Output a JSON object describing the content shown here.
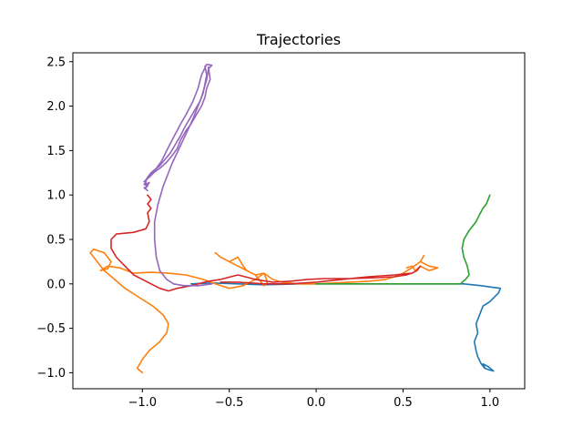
{
  "chart_data": {
    "type": "line",
    "title": "Trajectories",
    "xlabel": "",
    "ylabel": "",
    "xlim": [
      -1.4,
      1.2
    ],
    "ylim": [
      -1.18,
      2.6
    ],
    "xticks": [
      -1.0,
      -0.5,
      0.0,
      0.5,
      1.0
    ],
    "xtick_labels": [
      "−1.0",
      "−0.5",
      "0.0",
      "0.5",
      "1.0"
    ],
    "yticks": [
      -1.0,
      -0.5,
      0.0,
      0.5,
      1.0,
      1.5,
      2.0,
      2.5
    ],
    "ytick_labels": [
      "−1.0",
      "−0.5",
      "0.0",
      "0.5",
      "1.0",
      "1.5",
      "2.0",
      "2.5"
    ],
    "grid": false,
    "legend": "none",
    "series": [
      {
        "color": "#1f77b4",
        "points": [
          [
            -0.72,
            0.0
          ],
          [
            -0.6,
            0.01
          ],
          [
            -0.45,
            0.0
          ],
          [
            -0.3,
            -0.01
          ],
          [
            -0.1,
            0.0
          ],
          [
            0.1,
            0.0
          ],
          [
            0.3,
            0.0
          ],
          [
            0.5,
            0.0
          ],
          [
            0.7,
            0.0
          ],
          [
            0.85,
            0.0
          ],
          [
            0.95,
            -0.02
          ],
          [
            1.02,
            -0.04
          ],
          [
            1.06,
            -0.05
          ],
          [
            1.05,
            -0.1
          ],
          [
            1.0,
            -0.2
          ],
          [
            0.96,
            -0.25
          ],
          [
            0.94,
            -0.35
          ],
          [
            0.92,
            -0.45
          ],
          [
            0.93,
            -0.55
          ],
          [
            0.91,
            -0.65
          ],
          [
            0.92,
            -0.75
          ],
          [
            0.93,
            -0.82
          ],
          [
            0.95,
            -0.9
          ],
          [
            0.97,
            -0.95
          ],
          [
            1.0,
            -0.97
          ],
          [
            1.02,
            -0.98
          ],
          [
            0.99,
            -0.93
          ],
          [
            0.96,
            -0.9
          ],
          [
            0.97,
            -0.94
          ]
        ]
      },
      {
        "color": "#ff7f0e",
        "points": [
          [
            -1.0,
            -1.0
          ],
          [
            -1.03,
            -0.95
          ],
          [
            -1.0,
            -0.85
          ],
          [
            -0.96,
            -0.75
          ],
          [
            -0.9,
            -0.65
          ],
          [
            -0.86,
            -0.55
          ],
          [
            -0.85,
            -0.45
          ],
          [
            -0.88,
            -0.35
          ],
          [
            -0.94,
            -0.25
          ],
          [
            -1.02,
            -0.15
          ],
          [
            -1.1,
            -0.05
          ],
          [
            -1.16,
            0.05
          ],
          [
            -1.22,
            0.15
          ],
          [
            -1.26,
            0.25
          ],
          [
            -1.3,
            0.35
          ],
          [
            -1.28,
            0.39
          ],
          [
            -1.22,
            0.35
          ],
          [
            -1.18,
            0.25
          ],
          [
            -1.2,
            0.17
          ],
          [
            -1.24,
            0.15
          ],
          [
            -1.2,
            0.2
          ],
          [
            -1.13,
            0.18
          ],
          [
            -1.05,
            0.12
          ],
          [
            -0.95,
            0.13
          ],
          [
            -0.85,
            0.12
          ],
          [
            -0.75,
            0.1
          ],
          [
            -0.65,
            0.05
          ],
          [
            -0.58,
            0.0
          ],
          [
            -0.5,
            -0.05
          ],
          [
            -0.42,
            -0.02
          ],
          [
            -0.35,
            0.05
          ],
          [
            -0.3,
            0.12
          ],
          [
            -0.28,
            0.02
          ],
          [
            -0.3,
            -0.02
          ],
          [
            -0.35,
            0.1
          ],
          [
            -0.45,
            0.2
          ],
          [
            -0.5,
            0.25
          ],
          [
            -0.55,
            0.3
          ],
          [
            -0.58,
            0.35
          ],
          [
            -0.55,
            0.3
          ],
          [
            -0.5,
            0.25
          ],
          [
            -0.45,
            0.3
          ],
          [
            -0.42,
            0.2
          ],
          [
            -0.4,
            0.15
          ],
          [
            -0.35,
            0.1
          ],
          [
            -0.3,
            0.12
          ],
          [
            -0.25,
            0.05
          ],
          [
            -0.2,
            0.02
          ],
          [
            -0.1,
            0.0
          ],
          [
            0.0,
            0.0
          ],
          [
            0.1,
            0.01
          ],
          [
            0.2,
            0.02
          ],
          [
            0.3,
            0.03
          ],
          [
            0.4,
            0.05
          ],
          [
            0.45,
            0.08
          ],
          [
            0.5,
            0.12
          ],
          [
            0.55,
            0.18
          ],
          [
            0.6,
            0.25
          ],
          [
            0.62,
            0.32
          ],
          [
            0.6,
            0.25
          ],
          [
            0.65,
            0.2
          ],
          [
            0.7,
            0.18
          ],
          [
            0.65,
            0.15
          ],
          [
            0.6,
            0.2
          ],
          [
            0.57,
            0.15
          ],
          [
            0.55,
            0.2
          ],
          [
            0.52,
            0.18
          ]
        ]
      },
      {
        "color": "#2ca02c",
        "points": [
          [
            0.0,
            0.0
          ],
          [
            0.2,
            0.0
          ],
          [
            0.4,
            0.0
          ],
          [
            0.6,
            0.0
          ],
          [
            0.75,
            0.0
          ],
          [
            0.83,
            0.0
          ],
          [
            0.86,
            0.05
          ],
          [
            0.88,
            0.1
          ],
          [
            0.87,
            0.2
          ],
          [
            0.85,
            0.3
          ],
          [
            0.84,
            0.4
          ],
          [
            0.85,
            0.5
          ],
          [
            0.88,
            0.6
          ],
          [
            0.9,
            0.65
          ],
          [
            0.92,
            0.7
          ],
          [
            0.94,
            0.78
          ],
          [
            0.96,
            0.85
          ],
          [
            0.98,
            0.9
          ],
          [
            0.99,
            0.95
          ],
          [
            1.0,
            1.0
          ]
        ]
      },
      {
        "color": "#d62728",
        "points": [
          [
            -0.97,
            1.0
          ],
          [
            -0.95,
            0.95
          ],
          [
            -0.97,
            0.9
          ],
          [
            -0.95,
            0.85
          ],
          [
            -0.97,
            0.8
          ],
          [
            -0.96,
            0.7
          ],
          [
            -0.98,
            0.62
          ],
          [
            -1.05,
            0.58
          ],
          [
            -1.15,
            0.56
          ],
          [
            -1.18,
            0.5
          ],
          [
            -1.18,
            0.4
          ],
          [
            -1.15,
            0.3
          ],
          [
            -1.1,
            0.2
          ],
          [
            -1.05,
            0.1
          ],
          [
            -1.0,
            0.05
          ],
          [
            -0.95,
            0.0
          ],
          [
            -0.9,
            -0.05
          ],
          [
            -0.85,
            -0.08
          ],
          [
            -0.8,
            -0.05
          ],
          [
            -0.72,
            -0.02
          ],
          [
            -0.62,
            0.03
          ],
          [
            -0.55,
            0.05
          ],
          [
            -0.45,
            0.1
          ],
          [
            -0.35,
            0.05
          ],
          [
            -0.25,
            0.02
          ],
          [
            -0.15,
            0.03
          ],
          [
            -0.05,
            0.05
          ],
          [
            0.05,
            0.06
          ],
          [
            0.2,
            0.06
          ],
          [
            0.35,
            0.07
          ],
          [
            0.45,
            0.08
          ],
          [
            0.52,
            0.1
          ],
          [
            0.55,
            0.12
          ],
          [
            0.58,
            0.15
          ],
          [
            0.6,
            0.2
          ],
          [
            0.58,
            0.15
          ],
          [
            0.55,
            0.12
          ],
          [
            0.45,
            0.1
          ],
          [
            0.3,
            0.08
          ],
          [
            0.15,
            0.05
          ],
          [
            0.0,
            0.02
          ],
          [
            -0.15,
            0.0
          ],
          [
            -0.3,
            0.0
          ],
          [
            -0.45,
            0.02
          ],
          [
            -0.55,
            0.02
          ]
        ]
      },
      {
        "color": "#9467bd",
        "points": [
          [
            -0.6,
            0.0
          ],
          [
            -0.68,
            -0.02
          ],
          [
            -0.76,
            -0.02
          ],
          [
            -0.82,
            0.0
          ],
          [
            -0.86,
            0.05
          ],
          [
            -0.9,
            0.15
          ],
          [
            -0.92,
            0.3
          ],
          [
            -0.93,
            0.5
          ],
          [
            -0.93,
            0.7
          ],
          [
            -0.91,
            0.9
          ],
          [
            -0.88,
            1.1
          ],
          [
            -0.83,
            1.35
          ],
          [
            -0.77,
            1.6
          ],
          [
            -0.71,
            1.85
          ],
          [
            -0.66,
            2.1
          ],
          [
            -0.63,
            2.3
          ],
          [
            -0.62,
            2.42
          ],
          [
            -0.6,
            2.46
          ],
          [
            -0.63,
            2.47
          ],
          [
            -0.66,
            2.35
          ],
          [
            -0.68,
            2.2
          ],
          [
            -0.71,
            2.05
          ],
          [
            -0.75,
            1.9
          ],
          [
            -0.78,
            1.8
          ],
          [
            -0.82,
            1.65
          ],
          [
            -0.86,
            1.5
          ],
          [
            -0.89,
            1.38
          ],
          [
            -0.92,
            1.3
          ],
          [
            -0.95,
            1.25
          ],
          [
            -0.97,
            1.2
          ],
          [
            -0.98,
            1.15
          ],
          [
            -0.99,
            1.12
          ],
          [
            -0.97,
            1.1
          ],
          [
            -0.99,
            1.08
          ],
          [
            -0.97,
            1.05
          ]
        ]
      },
      {
        "color": "#9467bd",
        "points": [
          [
            -0.64,
            2.45
          ],
          [
            -0.63,
            2.35
          ],
          [
            -0.64,
            2.25
          ],
          [
            -0.65,
            2.15
          ],
          [
            -0.67,
            2.05
          ],
          [
            -0.7,
            1.95
          ],
          [
            -0.73,
            1.85
          ],
          [
            -0.76,
            1.75
          ],
          [
            -0.78,
            1.67
          ],
          [
            -0.81,
            1.57
          ],
          [
            -0.84,
            1.47
          ],
          [
            -0.87,
            1.4
          ],
          [
            -0.9,
            1.33
          ],
          [
            -0.93,
            1.28
          ],
          [
            -0.96,
            1.22
          ],
          [
            -0.98,
            1.17
          ],
          [
            -0.98,
            1.12
          ],
          [
            -0.96,
            1.14
          ],
          [
            -0.98,
            1.08
          ]
        ]
      },
      {
        "color": "#9467bd",
        "points": [
          [
            -0.62,
            2.44
          ],
          [
            -0.61,
            2.3
          ],
          [
            -0.63,
            2.2
          ],
          [
            -0.64,
            2.1
          ],
          [
            -0.66,
            2.0
          ],
          [
            -0.69,
            1.9
          ],
          [
            -0.72,
            1.8
          ],
          [
            -0.75,
            1.72
          ],
          [
            -0.78,
            1.62
          ],
          [
            -0.8,
            1.52
          ],
          [
            -0.83,
            1.44
          ],
          [
            -0.86,
            1.37
          ],
          [
            -0.9,
            1.3
          ],
          [
            -0.93,
            1.26
          ],
          [
            -0.96,
            1.2
          ],
          [
            -0.99,
            1.15
          ]
        ]
      }
    ]
  }
}
